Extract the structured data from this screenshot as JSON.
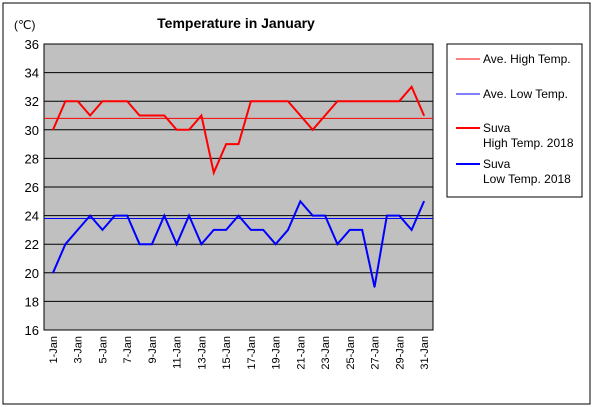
{
  "chart_data": {
    "type": "line",
    "title": "Temperature in January",
    "unit_label": "(℃)",
    "ylim": [
      16,
      36
    ],
    "yticks": [
      16,
      18,
      20,
      22,
      24,
      26,
      28,
      30,
      32,
      34,
      36
    ],
    "x": [
      "1-Jan",
      "2-Jan",
      "3-Jan",
      "4-Jan",
      "5-Jan",
      "6-Jan",
      "7-Jan",
      "8-Jan",
      "9-Jan",
      "10-Jan",
      "11-Jan",
      "12-Jan",
      "13-Jan",
      "14-Jan",
      "15-Jan",
      "16-Jan",
      "17-Jan",
      "18-Jan",
      "19-Jan",
      "20-Jan",
      "21-Jan",
      "22-Jan",
      "23-Jan",
      "24-Jan",
      "25-Jan",
      "26-Jan",
      "27-Jan",
      "28-Jan",
      "29-Jan",
      "30-Jan",
      "31-Jan"
    ],
    "xtick_labels": [
      "1-Jan",
      "3-Jan",
      "5-Jan",
      "7-Jan",
      "9-Jan",
      "11-Jan",
      "13-Jan",
      "15-Jan",
      "17-Jan",
      "19-Jan",
      "21-Jan",
      "23-Jan",
      "25-Jan",
      "27-Jan",
      "29-Jan",
      "31-Jan"
    ],
    "grid": true,
    "plot_background": "#c0c0c0",
    "legend_position": "right",
    "reference_lines": [
      {
        "name": "Ave. High Temp.",
        "value": 30.8,
        "color": "#ff0000"
      },
      {
        "name": "Ave. Low Temp.",
        "value": 23.8,
        "color": "#0000ff"
      }
    ],
    "series": [
      {
        "name": "Suva High Temp. 2018",
        "legend_lines": [
          "Suva",
          "High Temp. 2018"
        ],
        "color": "#ff0000",
        "values": [
          30,
          32,
          32,
          31,
          32,
          32,
          32,
          31,
          31,
          31,
          30,
          30,
          31,
          27,
          29,
          29,
          32,
          32,
          32,
          32,
          31,
          30,
          31,
          32,
          32,
          32,
          32,
          32,
          32,
          33,
          31
        ]
      },
      {
        "name": "Suva Low Temp. 2018",
        "legend_lines": [
          "Suva",
          "Low Temp. 2018"
        ],
        "color": "#0000ff",
        "values": [
          20,
          22,
          23,
          24,
          23,
          24,
          24,
          22,
          22,
          24,
          22,
          24,
          22,
          23,
          23,
          24,
          23,
          23,
          22,
          23,
          25,
          24,
          24,
          22,
          23,
          23,
          19,
          24,
          24,
          23,
          25
        ]
      }
    ]
  }
}
